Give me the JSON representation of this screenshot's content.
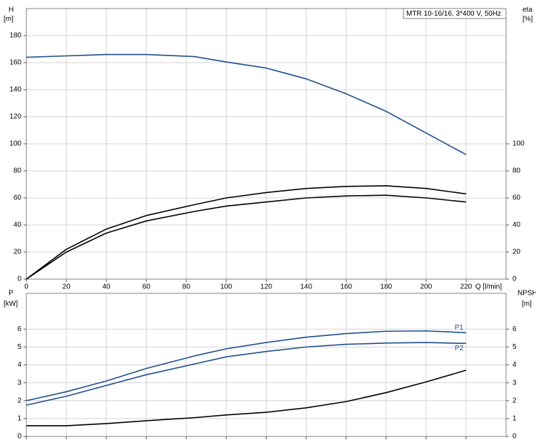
{
  "chart_data": [
    {
      "type": "line",
      "annotation": "MTR 10-16/16, 3*400 V, 50Hz",
      "ylabel": "H",
      "yunit": "[m]",
      "y2label": "eta",
      "y2unit": "[%]",
      "xlabel": "Q [l/min]",
      "x": [
        0,
        20,
        40,
        60,
        84,
        100,
        120,
        140,
        160,
        180,
        200,
        220
      ],
      "xlim": [
        0,
        240
      ],
      "xticks": [
        0,
        20,
        40,
        60,
        80,
        100,
        120,
        140,
        160,
        180,
        200,
        220
      ],
      "ylim": [
        0,
        200
      ],
      "yticks": [
        0,
        20,
        40,
        60,
        80,
        100,
        120,
        140,
        160,
        180
      ],
      "y2lim": [
        0,
        200
      ],
      "y2ticks": [
        0,
        20,
        40,
        60,
        80,
        100
      ],
      "grid": true,
      "series": [
        {
          "color": "#1f4e8c",
          "values": [
            164,
            165,
            166,
            166,
            164.5,
            160.5,
            156,
            148,
            137,
            124,
            108,
            92
          ]
        },
        {
          "color": "#000000",
          "axis": "y2",
          "values": [
            0,
            22,
            37,
            47,
            55,
            60,
            64,
            67,
            68.5,
            69,
            67,
            63
          ]
        },
        {
          "color": "#000000",
          "axis": "y2",
          "values": [
            0,
            20,
            34,
            43,
            50,
            54,
            57,
            60,
            61.5,
            62,
            60,
            57
          ]
        }
      ]
    },
    {
      "type": "line",
      "ylabel": "P",
      "yunit": "[kW]",
      "y2label": "NPSH",
      "y2unit": "[m]",
      "x": [
        0,
        20,
        40,
        60,
        84,
        100,
        120,
        140,
        160,
        180,
        200,
        220
      ],
      "xlim": [
        0,
        240
      ],
      "xticks": [
        0,
        20,
        40,
        60,
        80,
        100,
        120,
        140,
        160,
        180,
        200,
        220
      ],
      "ylim": [
        0,
        8
      ],
      "yticks": [
        0,
        1,
        2,
        3,
        4,
        5,
        6
      ],
      "y2lim": [
        0,
        8
      ],
      "y2ticks": [
        0,
        1,
        2,
        3,
        4,
        5,
        6
      ],
      "grid": true,
      "series": [
        {
          "name": "P1",
          "color": "#1f4e8c",
          "values": [
            2.0,
            2.5,
            3.1,
            3.8,
            4.5,
            4.9,
            5.25,
            5.55,
            5.75,
            5.88,
            5.9,
            5.8
          ]
        },
        {
          "name": "P2",
          "color": "#1f4e8c",
          "values": [
            1.75,
            2.25,
            2.85,
            3.45,
            4.05,
            4.45,
            4.75,
            5.0,
            5.15,
            5.22,
            5.25,
            5.2
          ]
        },
        {
          "color": "#000000",
          "axis": "y2",
          "values": [
            0.6,
            0.6,
            0.72,
            0.88,
            1.05,
            1.2,
            1.35,
            1.6,
            1.95,
            2.45,
            3.05,
            3.7
          ]
        }
      ]
    }
  ]
}
